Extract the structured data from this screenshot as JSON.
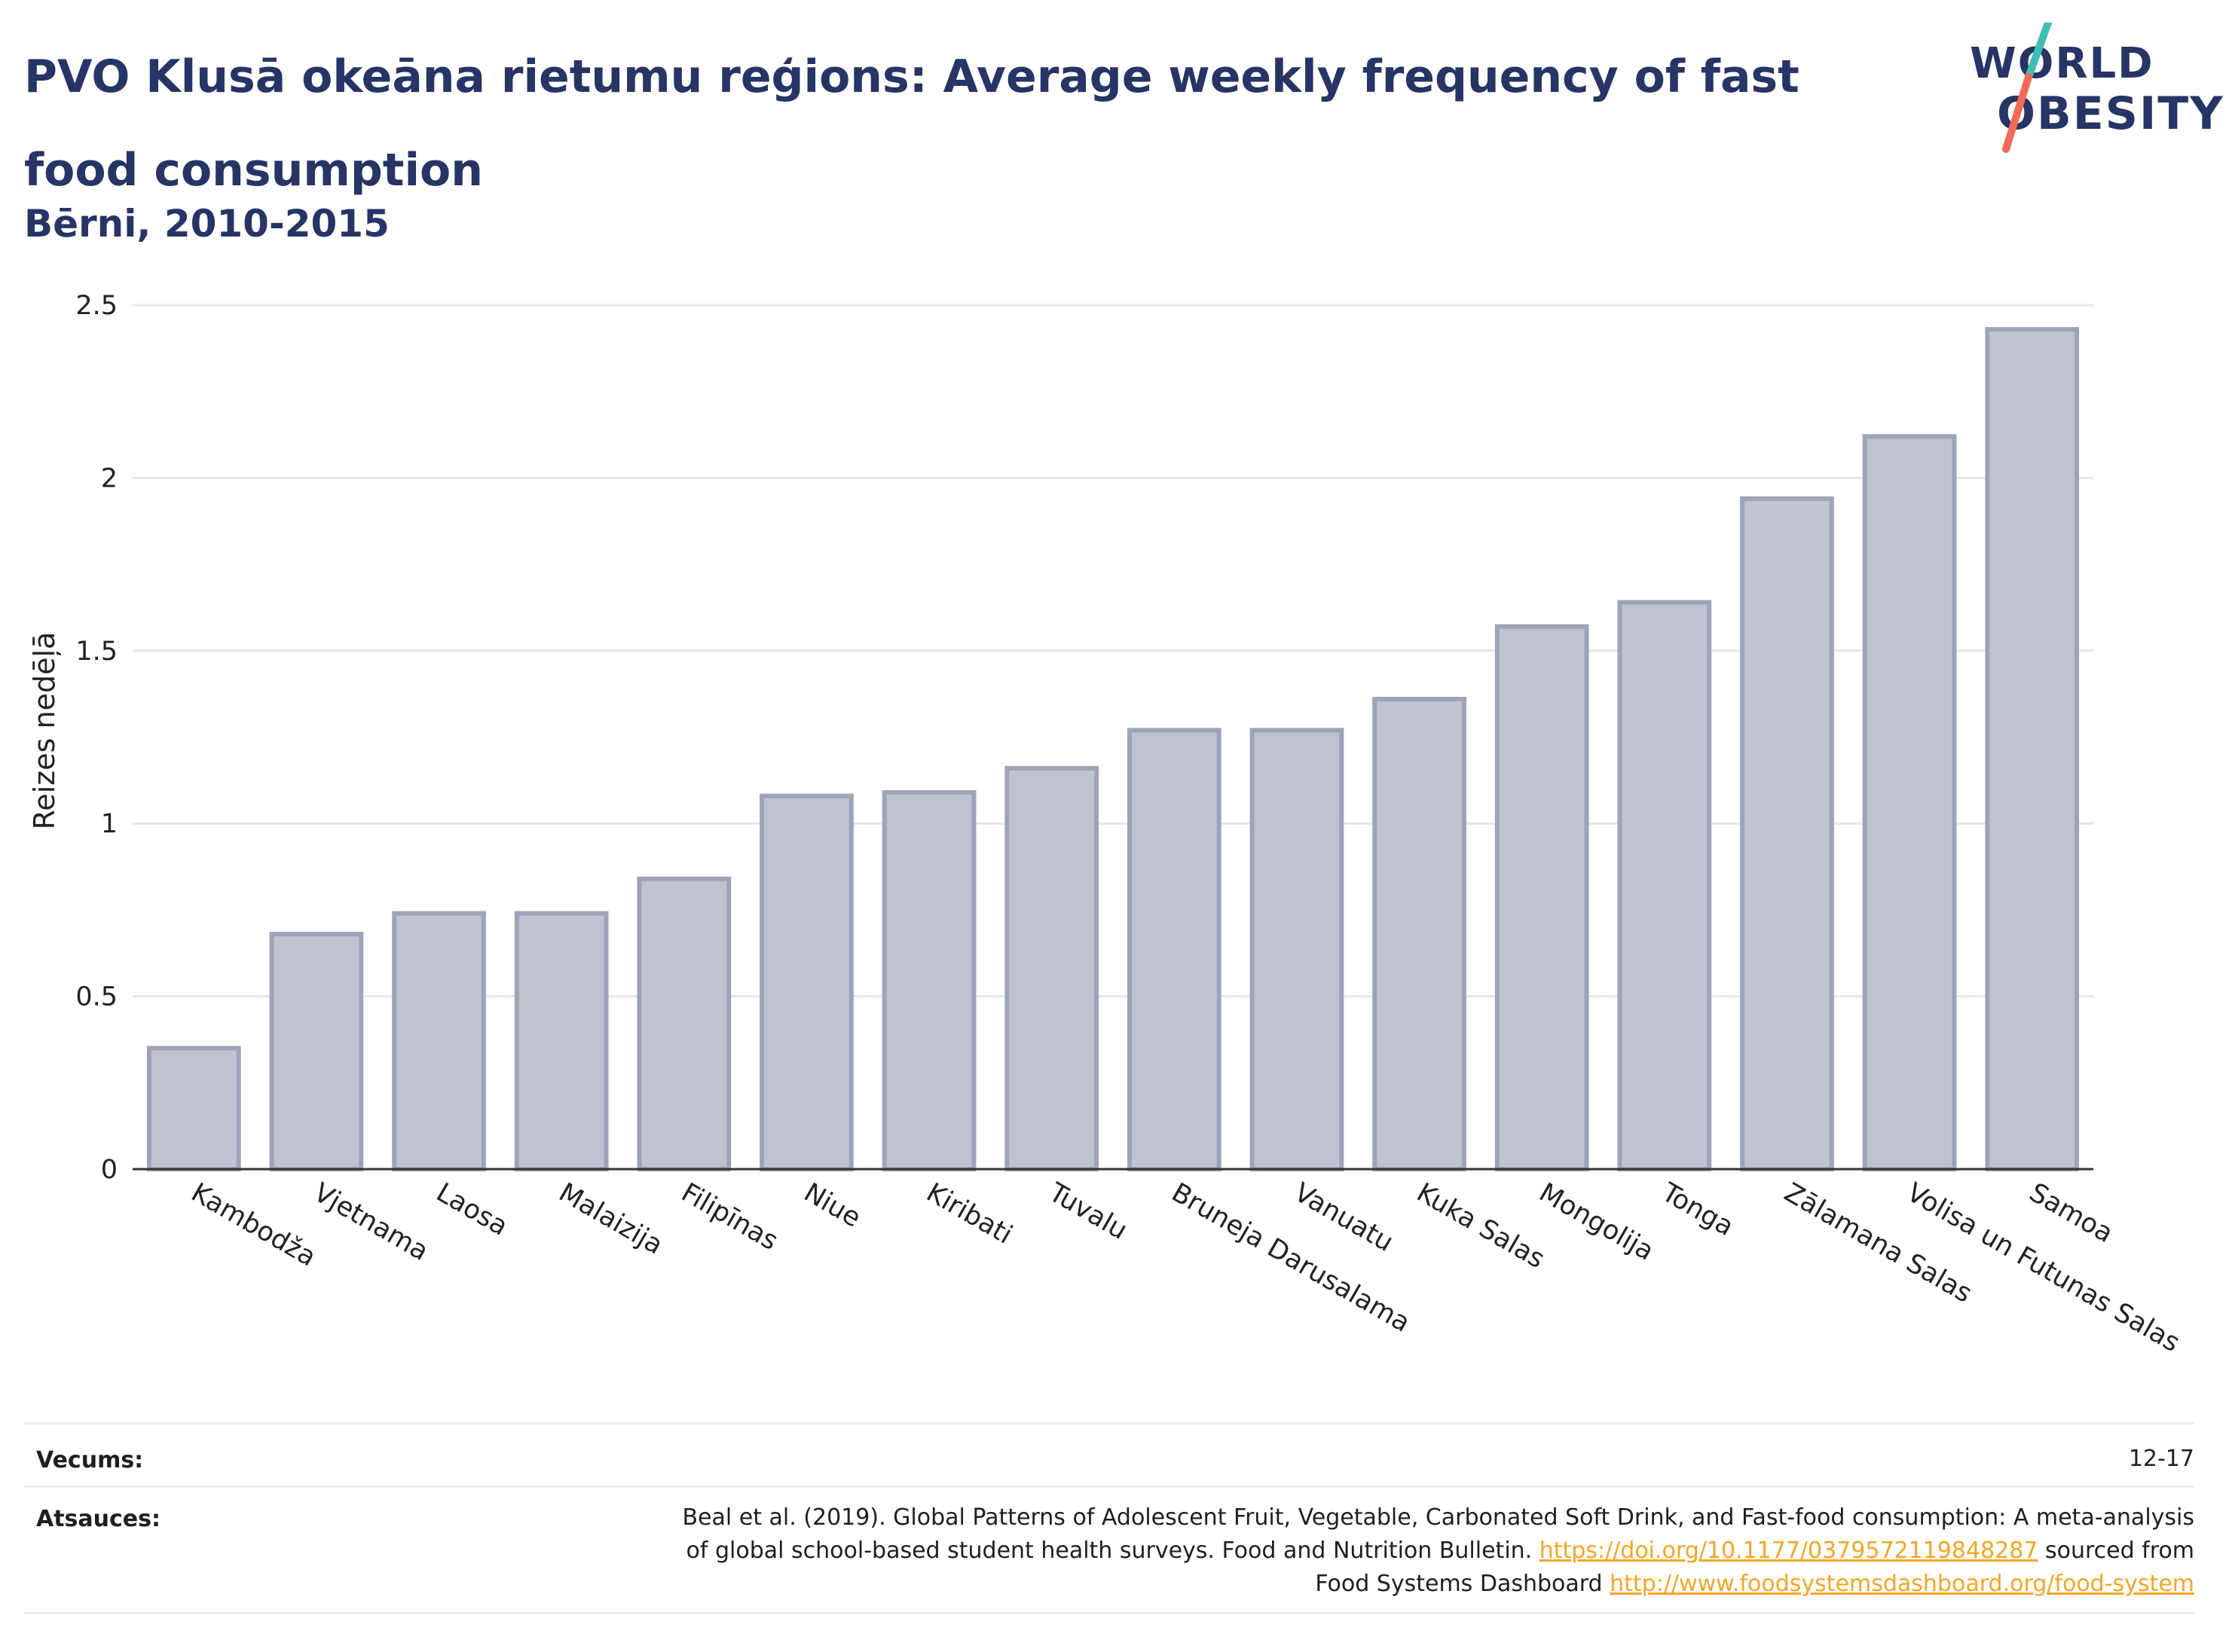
{
  "header": {
    "title": "PVO Klusā okeāna rietumu reģions: Average weekly frequency of fast food consumption",
    "subtitle": "Bērni, 2010-2015"
  },
  "logo": {
    "line1": "WORLD",
    "line2": "OBESITY",
    "slash_colors": [
      "#3fbfb3",
      "#f26a57"
    ]
  },
  "chart_data": {
    "type": "bar",
    "categories": [
      "Kambodža",
      "Vjetnama",
      "Laosa",
      "Malaizija",
      "Filipīnas",
      "Niue",
      "Kiribati",
      "Tuvalu",
      "Bruneja Darusalama",
      "Vanuatu",
      "Kuka Salas",
      "Mongolija",
      "Tonga",
      "Zālamana Salas",
      "Volisa un Futunas Salas",
      "Samoa"
    ],
    "values": [
      0.35,
      0.68,
      0.74,
      0.74,
      0.84,
      1.08,
      1.09,
      1.16,
      1.27,
      1.27,
      1.36,
      1.57,
      1.64,
      1.94,
      2.12,
      2.43
    ],
    "ylabel": "Reizes nedēļā",
    "xlabel": "",
    "ylim": [
      0,
      2.5
    ],
    "yticks": [
      "0",
      "0.5",
      "1",
      "1.5",
      "2",
      "2.5"
    ],
    "grid": true,
    "bar_fill": "#bfc3cf",
    "bar_stroke": "#9ea4b8"
  },
  "footer": {
    "age_label": "Vecums:",
    "age_value": "12-17",
    "sources_label": "Atsauces:",
    "source_line1": "Beal et al. (2019). Global Patterns of Adolescent Fruit, Vegetable, Carbonated Soft Drink, and Fast-food consumption: A meta-analysis",
    "source_line2_text": "of global school-based student health surveys. Food and Nutrition Bulletin.",
    "source_link1": "https://doi.org/10.1177/0379572119848287",
    "source_line2_suffix": "sourced from",
    "source_line3_text": "Food Systems Dashboard",
    "source_link2": "http://www.foodsystemsdashboard.org/food-system",
    "link_color": "#f5a623"
  }
}
